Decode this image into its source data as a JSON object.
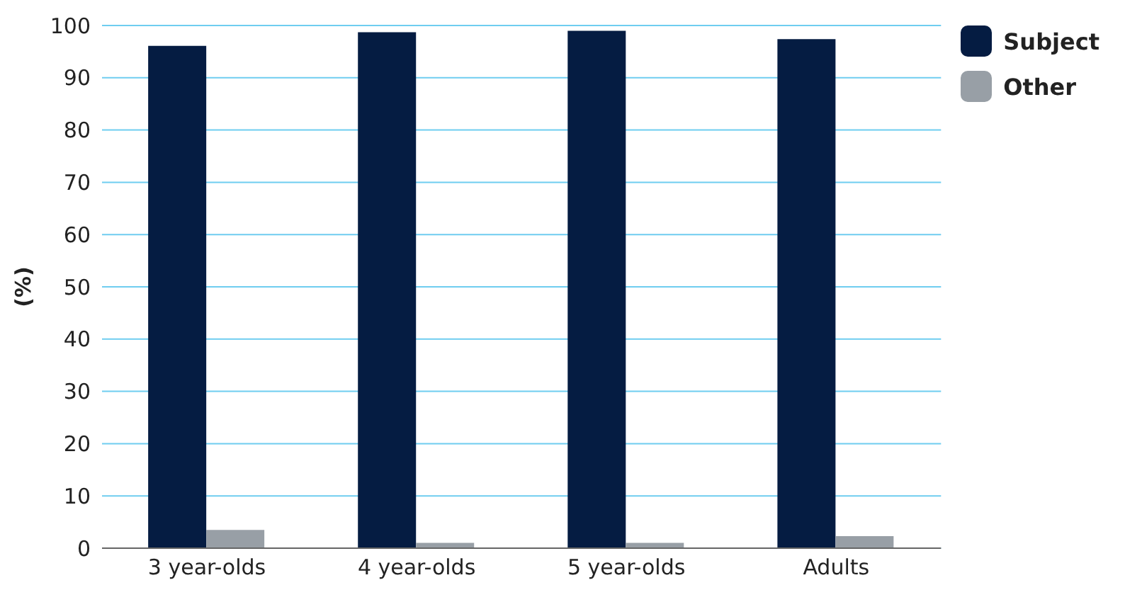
{
  "chart_data": {
    "type": "bar",
    "ylabel": "(%)",
    "categories": [
      "3 year-olds",
      "4 year-olds",
      "5 year-olds",
      "Adults"
    ],
    "series": [
      {
        "name": "Subject",
        "color": "#051c42",
        "values": [
          96.1,
          98.7,
          99.0,
          97.4
        ]
      },
      {
        "name": "Other",
        "color": "#989fa6",
        "values": [
          3.5,
          1.0,
          1.0,
          2.3
        ]
      }
    ],
    "ylim": [
      0,
      100
    ],
    "yticks": [
      0,
      10,
      20,
      30,
      40,
      50,
      60,
      70,
      80,
      90,
      100
    ],
    "grid": "y",
    "legend": "top right"
  }
}
